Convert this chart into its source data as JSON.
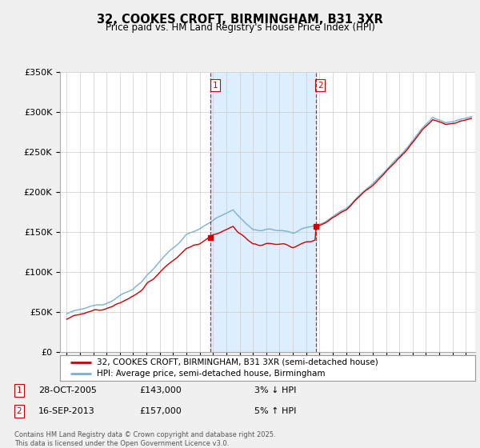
{
  "title_line1": "32, COOKES CROFT, BIRMINGHAM, B31 3XR",
  "title_line2": "Price paid vs. HM Land Registry's House Price Index (HPI)",
  "y_ticks": [
    0,
    50000,
    100000,
    150000,
    200000,
    250000,
    300000,
    350000
  ],
  "y_tick_labels": [
    "£0",
    "£50K",
    "£100K",
    "£150K",
    "£200K",
    "£250K",
    "£300K",
    "£350K"
  ],
  "property_color": "#cc0000",
  "hpi_color": "#7ab0d4",
  "purchase1_year": 2005.83,
  "purchase1_price": 143000,
  "purchase2_year": 2013.71,
  "purchase2_price": 157000,
  "vline_color": "#cc0000",
  "background_color": "#f0f0f0",
  "plot_bg_color": "#ffffff",
  "shade_color": "#ddeeff",
  "legend_label1": "32, COOKES CROFT, BIRMINGHAM, B31 3XR (semi-detached house)",
  "legend_label2": "HPI: Average price, semi-detached house, Birmingham",
  "annotation1_date": "28-OCT-2005",
  "annotation1_price": "£143,000",
  "annotation1_pct": "3% ↓ HPI",
  "annotation2_date": "16-SEP-2013",
  "annotation2_price": "£157,000",
  "annotation2_pct": "5% ↑ HPI",
  "footer_text": "Contains HM Land Registry data © Crown copyright and database right 2025.\nThis data is licensed under the Open Government Licence v3.0."
}
